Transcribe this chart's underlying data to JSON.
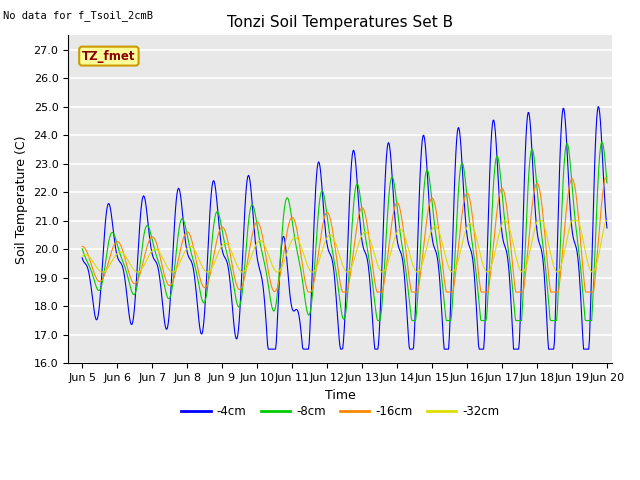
{
  "title": "Tonzi Soil Temperatures Set B",
  "no_data_label": "No data for f_Tsoil_2cmB",
  "tz_fmet_label": "TZ_fmet",
  "xlabel": "Time",
  "ylabel": "Soil Temperature (C)",
  "ylim": [
    16.0,
    27.5
  ],
  "yticks": [
    16.0,
    17.0,
    18.0,
    19.0,
    20.0,
    21.0,
    22.0,
    23.0,
    24.0,
    25.0,
    26.0,
    27.0
  ],
  "xlim_days": [
    4.6,
    20.15
  ],
  "xtick_labels": [
    "Jun 5",
    "Jun 6",
    "Jun 7",
    "Jun 8",
    "Jun 9",
    "Jun 10",
    "Jun 11",
    "Jun 12",
    "Jun 13",
    "Jun 14",
    "Jun 15",
    "Jun 16",
    "Jun 17",
    "Jun 18",
    "Jun 19",
    "Jun 20"
  ],
  "xtick_positions": [
    5,
    6,
    7,
    8,
    9,
    10,
    11,
    12,
    13,
    14,
    15,
    16,
    17,
    18,
    19,
    20
  ],
  "colors": {
    "4cm": "#0000FF",
    "8cm": "#00CC00",
    "16cm": "#FF8800",
    "32cm": "#DDDD00"
  },
  "legend_labels": [
    "-4cm",
    "-8cm",
    "-16cm",
    "-32cm"
  ],
  "plot_bg_color": "#E8E8E8",
  "grid_color": "#FFFFFF",
  "title_fontsize": 11,
  "label_fontsize": 9,
  "tick_fontsize": 8
}
